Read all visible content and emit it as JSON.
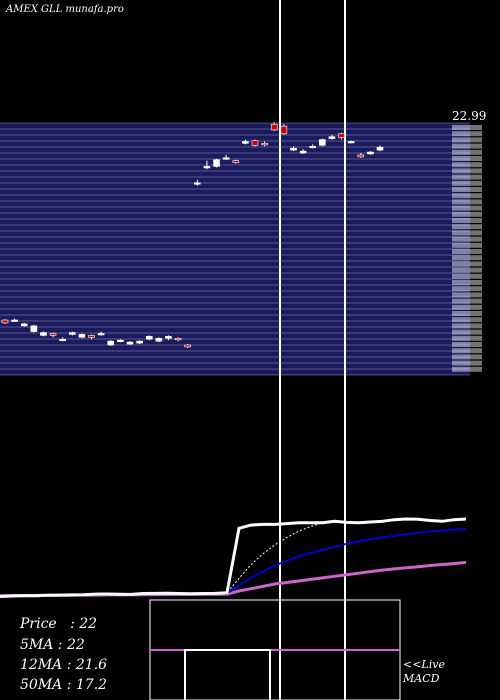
{
  "header": {
    "title": "AMEX  GLL munafa.pro"
  },
  "stats": [
    {
      "label": "Price",
      "value": "22"
    },
    {
      "label": "5MA",
      "value": "22"
    },
    {
      "label": "12MA",
      "value": "21.6"
    },
    {
      "label": "50MA",
      "value": "17.2"
    }
  ],
  "macd": {
    "line1": "<<Live",
    "line2": "MACD"
  },
  "colors": {
    "background": "#000000",
    "band": "#1a1a5e",
    "bull": "#ffffff",
    "bear": "#cc0000",
    "ma_short": "#ffffff",
    "ma_mid": "#0000cc",
    "ma_long": "#cc66cc"
  },
  "chart_data": {
    "type": "candlestick",
    "price_label": "22.99",
    "vlines": [
      280,
      345
    ],
    "candles": [
      [
        2.6,
        2.3,
        2.2,
        2.7
      ],
      [
        2.5,
        2.6,
        2.45,
        2.75
      ],
      [
        2.0,
        2.2,
        1.9,
        2.3
      ],
      [
        1.4,
        2.0,
        1.3,
        2.1
      ],
      [
        1.0,
        1.3,
        0.9,
        1.4
      ],
      [
        1.2,
        1.0,
        0.8,
        1.3
      ],
      [
        0.5,
        0.6,
        0.4,
        0.8
      ],
      [
        1.1,
        1.3,
        1.0,
        1.4
      ],
      [
        0.8,
        1.1,
        0.7,
        1.2
      ],
      [
        1.0,
        0.8,
        0.6,
        1.1
      ],
      [
        1.2,
        1.2,
        1.0,
        1.4
      ],
      [
        0.0,
        0.4,
        -0.1,
        0.5
      ],
      [
        0.4,
        0.5,
        0.3,
        0.6
      ],
      [
        0.1,
        0.3,
        0.0,
        0.4
      ],
      [
        0.2,
        0.4,
        0.1,
        0.5
      ],
      [
        0.6,
        0.9,
        0.5,
        1.0
      ],
      [
        0.4,
        0.7,
        0.3,
        0.8
      ],
      [
        0.7,
        0.9,
        0.5,
        1.0
      ],
      [
        0.7,
        0.6,
        0.4,
        0.8
      ],
      [
        0.0,
        -0.2,
        -0.3,
        0.1
      ],
      [
        16.8,
        16.9,
        16.6,
        17.2
      ],
      [
        18.5,
        18.6,
        18.3,
        19.2
      ],
      [
        18.6,
        19.3,
        18.5,
        19.4
      ],
      [
        19.4,
        19.5,
        19.3,
        19.8
      ],
      [
        19.2,
        19.0,
        18.9,
        19.3
      ],
      [
        21.0,
        21.2,
        20.9,
        21.4
      ],
      [
        21.3,
        20.8,
        20.7,
        21.4
      ],
      [
        21.0,
        20.9,
        20.7,
        21.2
      ],
      [
        23.0,
        22.4,
        22.3,
        23.2
      ],
      [
        22.8,
        22.0,
        21.9,
        23.0
      ],
      [
        20.3,
        20.5,
        20.2,
        20.7
      ],
      [
        20.0,
        20.2,
        19.9,
        20.4
      ],
      [
        20.7,
        20.7,
        20.5,
        20.9
      ],
      [
        20.8,
        21.4,
        20.7,
        21.5
      ],
      [
        21.5,
        21.7,
        21.4,
        21.9
      ],
      [
        22.0,
        21.6,
        21.4,
        22.1
      ],
      [
        21.1,
        21.2,
        21.0,
        21.3
      ],
      [
        19.8,
        19.6,
        19.5,
        20.0
      ],
      [
        19.9,
        20.1,
        19.8,
        20.2
      ],
      [
        20.3,
        20.6,
        20.2,
        20.8
      ]
    ],
    "ma_short": [
      1,
      1.3,
      1.4,
      1.5,
      1.8,
      1.9,
      2.0,
      2.1,
      2.5,
      2.6,
      2.4,
      2.3,
      2.9,
      3.0,
      3.1,
      2.9,
      2.8,
      2.9,
      3.0,
      3.4,
      45,
      47,
      47.5,
      47.5,
      48,
      48.5,
      48.6,
      48.5,
      49.5,
      48.8,
      48.5,
      49,
      49.5,
      50.5,
      51,
      50.8,
      50,
      49.5,
      50.5,
      51
    ],
    "ma_mid": [
      1,
      1.2,
      1.3,
      1.3,
      1.5,
      1.7,
      1.8,
      1.9,
      2.0,
      2.1,
      2.3,
      2.4,
      2.5,
      2.6,
      2.6,
      2.7,
      2.8,
      2.8,
      2.9,
      3.0,
      8,
      13,
      17,
      21,
      24,
      27,
      29,
      31,
      33,
      35,
      36.5,
      38,
      39,
      40,
      41,
      42,
      43,
      43.5,
      44,
      44.5
    ],
    "ma_long": [
      1.5,
      1.6,
      1.6,
      1.7,
      1.7,
      1.8,
      1.8,
      1.9,
      1.9,
      2.0,
      2.0,
      2.1,
      2.1,
      2.2,
      2.2,
      2.3,
      2.3,
      2.4,
      2.4,
      2.5,
      4.5,
      6,
      7.5,
      9,
      10,
      11,
      12,
      13,
      14,
      15,
      16,
      17,
      18,
      18.8,
      19.5,
      20.2,
      21,
      21.6,
      22.2,
      23
    ]
  }
}
